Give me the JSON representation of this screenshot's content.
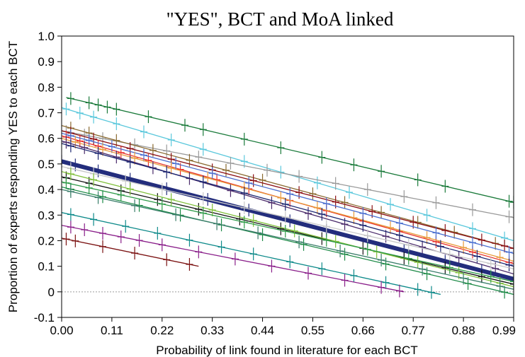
{
  "chart_data": {
    "type": "line",
    "title": "\"YES\", BCT and MoA linked",
    "xlabel": "Probability of link found in literature for  each BCT",
    "ylabel": "Proportion of experts responding YES to each BCT",
    "xlim": [
      0,
      0.99
    ],
    "ylim": [
      -0.1,
      1.0
    ],
    "x_ticks": [
      "0.00",
      "0.11",
      "0.22",
      "0.33",
      "0.44",
      "0.55",
      "0.66",
      "0.77",
      "0.88",
      "0.99"
    ],
    "y_ticks": [
      "-0.1",
      "0",
      "0.1",
      "0.2",
      "0.3",
      "0.4",
      "0.5",
      "0.6",
      "0.7",
      "0.8",
      "0.9",
      "1.0"
    ],
    "reference_line_y": 0,
    "grid": false,
    "legend": "none",
    "markers": "plus",
    "series": [
      {
        "x": [
          0.01,
          0.99
        ],
        "y": [
          0.76,
          0.35
        ],
        "color": "#1a7a3a",
        "markers_x": [
          0.02,
          0.06,
          0.08,
          0.1,
          0.12,
          0.19,
          0.27,
          0.31,
          0.4,
          0.48,
          0.57,
          0.64,
          0.7,
          0.78,
          0.84,
          0.98,
          0.99
        ]
      },
      {
        "x": [
          0.0,
          0.99
        ],
        "y": [
          0.72,
          0.2
        ],
        "color": "#5bc8dc",
        "markers_x": [
          0.01,
          0.04,
          0.07,
          0.12,
          0.18,
          0.24,
          0.31,
          0.4,
          0.48,
          0.56,
          0.63,
          0.72,
          0.8,
          0.9,
          0.97
        ]
      },
      {
        "x": [
          0.0,
          0.99
        ],
        "y": [
          0.63,
          0.29
        ],
        "color": "#9a9a9a",
        "markers_x": [
          0.01,
          0.05,
          0.09,
          0.16,
          0.23,
          0.3,
          0.37,
          0.45,
          0.52,
          0.6,
          0.67,
          0.75,
          0.82,
          0.9,
          0.98
        ]
      },
      {
        "x": [
          0.0,
          0.99
        ],
        "y": [
          0.65,
          0.17
        ],
        "color": "#8a6a30",
        "markers_x": [
          0.02,
          0.06,
          0.12,
          0.2,
          0.28,
          0.36,
          0.44,
          0.55,
          0.62,
          0.7,
          0.78,
          0.86,
          0.95
        ]
      },
      {
        "x": [
          0.0,
          0.99
        ],
        "y": [
          0.63,
          0.17
        ],
        "color": "#8b0f14",
        "markers_x": [
          0.02,
          0.07,
          0.15,
          0.24,
          0.33,
          0.42,
          0.52,
          0.6,
          0.68,
          0.77,
          0.84,
          0.92,
          0.97,
          0.99
        ]
      },
      {
        "x": [
          0.0,
          0.99
        ],
        "y": [
          0.61,
          0.11
        ],
        "color": "#e8312a",
        "markers_x": [
          0.01,
          0.04,
          0.08,
          0.13,
          0.19,
          0.26,
          0.34,
          0.41,
          0.5,
          0.58,
          0.66,
          0.74,
          0.82,
          0.9,
          0.98
        ]
      },
      {
        "x": [
          0.0,
          0.99
        ],
        "y": [
          0.62,
          0.15
        ],
        "color": "#4a6fd0",
        "markers_x": [
          0.02,
          0.06,
          0.11,
          0.18,
          0.25,
          0.33,
          0.41,
          0.5,
          0.58,
          0.66,
          0.74,
          0.82,
          0.9,
          0.98
        ]
      },
      {
        "x": [
          0.0,
          0.99
        ],
        "y": [
          0.6,
          0.12
        ],
        "color": "#e89a3a",
        "markers_x": [
          0.03,
          0.09,
          0.16,
          0.24,
          0.32,
          0.4,
          0.48,
          0.56,
          0.64,
          0.72,
          0.8,
          0.88,
          0.96
        ]
      },
      {
        "x": [
          0.0,
          0.99
        ],
        "y": [
          0.59,
          0.07
        ],
        "color": "#4a2a6a",
        "markers_x": [
          0.01,
          0.05,
          0.12,
          0.2,
          0.28,
          0.37,
          0.46,
          0.54,
          0.62,
          0.71,
          0.79,
          0.87,
          0.95
        ]
      },
      {
        "x": [
          0.0,
          0.99
        ],
        "y": [
          0.58,
          0.1
        ],
        "color": "#1b2570",
        "markers_x": [
          0.02,
          0.08,
          0.15,
          0.23,
          0.31,
          0.4,
          0.49,
          0.57,
          0.66,
          0.74,
          0.83,
          0.91,
          0.98
        ]
      },
      {
        "x": [
          0.0,
          0.99
        ],
        "y": [
          0.51,
          0.05
        ],
        "color": "#232d7c",
        "width": 6,
        "markers_x": [
          0.0,
          0.03,
          0.08,
          0.15,
          0.23,
          0.32,
          0.41,
          0.5,
          0.58,
          0.67,
          0.75,
          0.84,
          0.92,
          0.99
        ]
      },
      {
        "x": [
          0.0,
          0.99
        ],
        "y": [
          0.49,
          0.09
        ],
        "color": "#c8c8c8",
        "markers_x": [
          0.02,
          0.07,
          0.14,
          0.22,
          0.31,
          0.4,
          0.49,
          0.58,
          0.67,
          0.76,
          0.85,
          0.94
        ]
      },
      {
        "x": [
          0.0,
          0.99
        ],
        "y": [
          0.45,
          0.03
        ],
        "color": "#111111",
        "markers_x": [
          0.01,
          0.06,
          0.13,
          0.21,
          0.3,
          0.39,
          0.48,
          0.57,
          0.66,
          0.75,
          0.84,
          0.92,
          0.99
        ]
      },
      {
        "x": [
          0.0,
          0.99
        ],
        "y": [
          0.47,
          0.02
        ],
        "color": "#7fbf3a",
        "markers_x": [
          0.02,
          0.07,
          0.15,
          0.24,
          0.33,
          0.42,
          0.51,
          0.6,
          0.69,
          0.78,
          0.87,
          0.96
        ]
      },
      {
        "x": [
          0.0,
          0.99
        ],
        "y": [
          0.43,
          0.04
        ],
        "color": "#2e9a48",
        "markers_x": [
          0.01,
          0.06,
          0.13,
          0.22,
          0.31,
          0.4,
          0.49,
          0.58,
          0.67,
          0.76,
          0.85,
          0.94,
          0.99
        ]
      },
      {
        "x": [
          0.0,
          0.99
        ],
        "y": [
          0.41,
          -0.01
        ],
        "color": "#1c8a46",
        "markers_x": [
          0.02,
          0.09,
          0.17,
          0.26,
          0.35,
          0.44,
          0.53,
          0.62,
          0.71,
          0.8,
          0.89,
          0.97
        ]
      },
      {
        "x": [
          0.0,
          0.99
        ],
        "y": [
          0.4,
          0.01
        ],
        "color": "#3a7d6a",
        "markers_x": [
          0.02,
          0.08,
          0.16,
          0.25,
          0.34,
          0.43,
          0.52,
          0.61,
          0.7,
          0.79,
          0.88,
          0.96
        ]
      },
      {
        "x": [
          0.0,
          0.83
        ],
        "y": [
          0.31,
          -0.01
        ],
        "color": "#0e8a8a",
        "markers_x": [
          0.02,
          0.07,
          0.14,
          0.21,
          0.28,
          0.35,
          0.42,
          0.5,
          0.57,
          0.64,
          0.71,
          0.78,
          0.81
        ]
      },
      {
        "x": [
          0.0,
          0.75
        ],
        "y": [
          0.26,
          0.0
        ],
        "color": "#8a1f8a",
        "markers_x": [
          0.02,
          0.05,
          0.09,
          0.13,
          0.17,
          0.22,
          0.3,
          0.38,
          0.46,
          0.54,
          0.62,
          0.7,
          0.74
        ]
      },
      {
        "x": [
          0.0,
          0.3
        ],
        "y": [
          0.21,
          0.1
        ],
        "color": "#7a1010",
        "markers_x": [
          0.01,
          0.03,
          0.09,
          0.16,
          0.23,
          0.28
        ]
      }
    ]
  }
}
